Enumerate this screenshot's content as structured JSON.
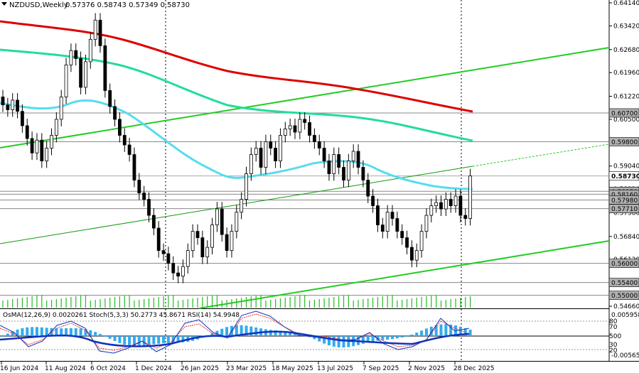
{
  "header": {
    "symbol": "NZDUSD,Weekly",
    "ohlc": "0.57376 0.58743 0.57349 0.58730"
  },
  "indicator": {
    "label": "OsMA(12,26,9) 0.0020261  Stoch(5,3,3) 50.2773 45.8671  RSI(14) 54.9948",
    "axis_top": "0.0059585",
    "axis_bottom": "-0.00565",
    "levels": [
      "80",
      "70",
      "50",
      "30",
      "20"
    ],
    "level_mid": "500"
  },
  "price_axis": {
    "ticks": [
      "0.64140",
      "0.63420",
      "0.62680",
      "0.61960",
      "0.61220",
      "0.60500",
      "0.59780",
      "0.59040",
      "0.58320",
      "0.57580",
      "0.56840",
      "0.56120",
      "0.55400",
      "0.54660"
    ]
  },
  "price_labels": [
    {
      "name": "level-60700",
      "text": "0.60700",
      "style": "grey"
    },
    {
      "name": "level-59800",
      "text": "0.59800",
      "style": "grey"
    },
    {
      "name": "level-58730",
      "text": "0.58730",
      "style": "current"
    },
    {
      "name": "level-58250",
      "text": "0.58250",
      "style": "grey"
    },
    {
      "name": "level-58160",
      "text": "0.58160",
      "style": "grey"
    },
    {
      "name": "level-57980",
      "text": "0.57980",
      "style": "grey"
    },
    {
      "name": "level-57710",
      "text": "0.57710",
      "style": "grey"
    },
    {
      "name": "level-56000",
      "text": "0.56000",
      "style": "grey"
    },
    {
      "name": "level-55400",
      "text": "0.55400",
      "style": "grey"
    },
    {
      "name": "level-55000",
      "text": "0.55000",
      "style": "grey"
    }
  ],
  "time_axis": [
    "16 Jun 2024",
    "11 Aug 2024",
    "6 Oct 2024",
    "1 Dec 2024",
    "26 Jan 2025",
    "23 Mar 2025",
    "18 May 2025",
    "13 Jul 2025",
    "7 Sep 2025",
    "2 Nov 2025",
    "28 Dec 2025"
  ],
  "colors": {
    "bull": "#ffffff",
    "bear": "#000000",
    "ema200": "#dd0000",
    "ema144": "#22dd99",
    "ema50": "#55ddee",
    "trend": "#22cc22",
    "osma": "#33aaee",
    "stoch_main": "#1133bb",
    "stoch_signal": "#ee3333",
    "rsi": "#1133bb"
  }
}
